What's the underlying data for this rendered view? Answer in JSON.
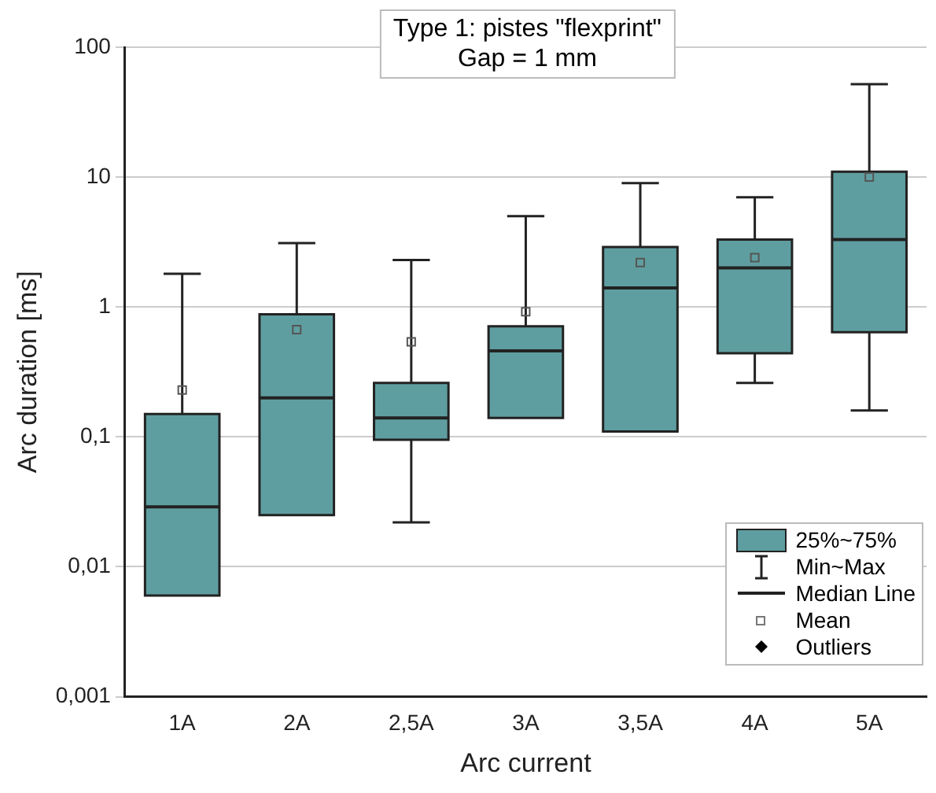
{
  "chart_data": {
    "type": "box",
    "title": "Type 1: pistes \"flexprint\"\nGap = 1 mm",
    "xlabel": "Arc current",
    "ylabel": "Arc duration [ms]",
    "categories": [
      "1A",
      "2A",
      "2,5A",
      "3A",
      "3,5A",
      "4A",
      "5A"
    ],
    "series": [
      {
        "name": "25%~75%",
        "color": "#5f9ea0",
        "boxes": [
          {
            "low": 0.006,
            "q1": 0.006,
            "median": 0.029,
            "q3": 0.15,
            "high": 1.8,
            "mean": 0.23
          },
          {
            "low": 0.025,
            "q1": 0.025,
            "median": 0.2,
            "q3": 0.88,
            "high": 3.1,
            "mean": 0.67
          },
          {
            "low": 0.022,
            "q1": 0.095,
            "median": 0.14,
            "q3": 0.26,
            "high": 2.3,
            "mean": 0.54
          },
          {
            "low": 0.14,
            "q1": 0.14,
            "median": 0.46,
            "q3": 0.71,
            "high": 5,
            "mean": 0.92
          },
          {
            "low": 0.11,
            "q1": 0.11,
            "median": 1.4,
            "q3": 2.9,
            "high": 9,
            "mean": 2.2
          },
          {
            "low": 0.26,
            "q1": 0.44,
            "median": 2,
            "q3": 3.3,
            "high": 7,
            "mean": 2.4
          },
          {
            "low": 0.16,
            "q1": 0.64,
            "median": 3.3,
            "q3": 11,
            "high": 52,
            "mean": 10
          }
        ]
      }
    ],
    "annotations": [
      "Min~Max",
      "Median Line",
      "Mean",
      "Outliers"
    ],
    "log": "y",
    "ylim": [
      0.001,
      100
    ],
    "yticks": [
      {
        "value": 0.001,
        "label": "0,001"
      },
      {
        "value": 0.01,
        "label": "0,01"
      },
      {
        "value": 0.1,
        "label": "0,1"
      },
      1,
      10,
      100
    ],
    "grid": "y",
    "legend": "bottom right"
  }
}
